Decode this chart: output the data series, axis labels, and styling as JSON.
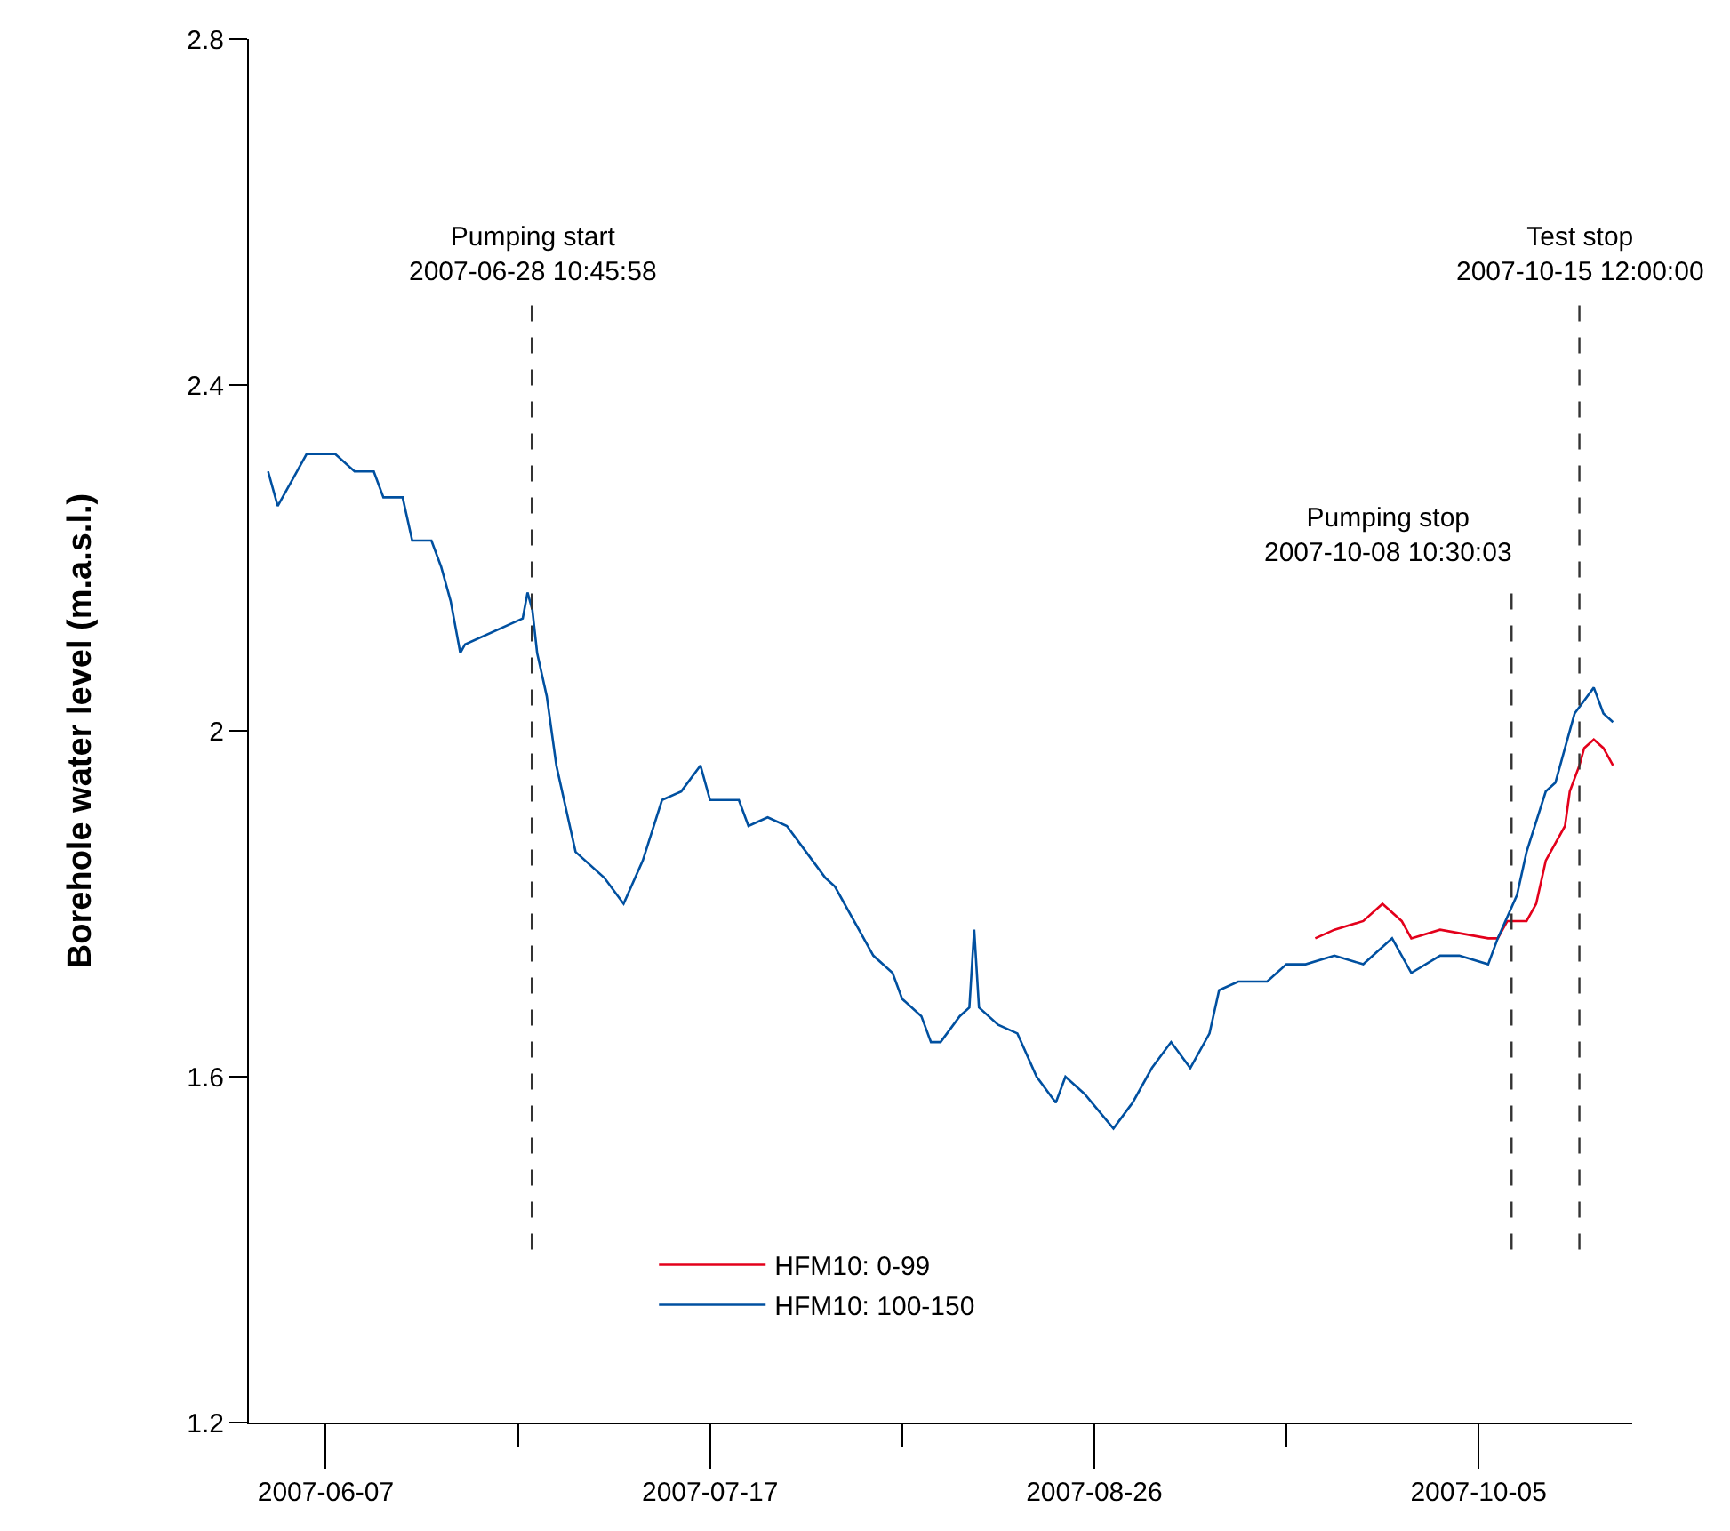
{
  "chart_data": {
    "type": "line",
    "ylabel": "Borehole water level (m.a.s.l.)",
    "xlim": [
      "2007-05-30",
      "2007-10-21"
    ],
    "xticks": [
      {
        "value": "2007-06-07",
        "label": "2007-06-07"
      },
      {
        "value": "2007-06-27",
        "label": null
      },
      {
        "value": "2007-07-17",
        "label": "2007-07-17"
      },
      {
        "value": "2007-08-06",
        "label": null
      },
      {
        "value": "2007-08-26",
        "label": "2007-08-26"
      },
      {
        "value": "2007-09-15",
        "label": null
      },
      {
        "value": "2007-10-05",
        "label": "2007-10-05"
      }
    ],
    "ylim": [
      1.2,
      2.8
    ],
    "yticks": [
      2.8,
      2.4,
      2,
      1.6,
      1.2
    ],
    "legend": "bottom",
    "marker": "none",
    "line_style": "solid",
    "series": [
      {
        "name": "HFM10: 0-99",
        "color": "#e3001b",
        "x": [
          "2007-09-18",
          "2007-09-20",
          "2007-09-23",
          "2007-09-25",
          "2007-09-27",
          "2007-09-28",
          "2007-10-01",
          "2007-10-06",
          "2007-10-07",
          "2007-10-08",
          "2007-10-10",
          "2007-10-11",
          "2007-10-12",
          "2007-10-14",
          "2007-10-14T12:00",
          "2007-10-15T12:00",
          "2007-10-16",
          "2007-10-17",
          "2007-10-18",
          "2007-10-19"
        ],
        "values": [
          1.76,
          1.77,
          1.78,
          1.8,
          1.78,
          1.76,
          1.77,
          1.76,
          1.76,
          1.78,
          1.78,
          1.8,
          1.85,
          1.89,
          1.93,
          1.96,
          1.98,
          1.99,
          1.98,
          1.96
        ]
      },
      {
        "name": "HFM10: 100-150",
        "color": "#0050a0",
        "x": [
          "2007-06-01",
          "2007-06-02",
          "2007-06-04",
          "2007-06-05",
          "2007-06-08",
          "2007-06-10",
          "2007-06-12",
          "2007-06-13",
          "2007-06-15",
          "2007-06-16",
          "2007-06-18",
          "2007-06-19",
          "2007-06-20",
          "2007-06-21",
          "2007-06-21T12:00",
          "2007-06-27T12:00",
          "2007-06-28",
          "2007-06-28T12:00",
          "2007-06-29",
          "2007-06-30",
          "2007-07-01",
          "2007-07-02",
          "2007-07-03",
          "2007-07-06",
          "2007-07-08",
          "2007-07-10",
          "2007-07-12",
          "2007-07-14",
          "2007-07-16",
          "2007-07-17",
          "2007-07-20",
          "2007-07-21",
          "2007-07-23",
          "2007-07-25",
          "2007-07-27",
          "2007-07-29",
          "2007-07-30",
          "2007-07-31",
          "2007-08-02",
          "2007-08-03",
          "2007-08-05",
          "2007-08-06",
          "2007-08-08",
          "2007-08-09",
          "2007-08-10",
          "2007-08-12",
          "2007-08-13",
          "2007-08-13T12:00",
          "2007-08-14",
          "2007-08-16",
          "2007-08-18",
          "2007-08-20",
          "2007-08-22",
          "2007-08-23",
          "2007-08-25",
          "2007-08-28",
          "2007-08-30",
          "2007-09-01",
          "2007-09-03",
          "2007-09-05",
          "2007-09-07",
          "2007-09-08",
          "2007-09-10",
          "2007-09-13",
          "2007-09-15",
          "2007-09-17",
          "2007-09-20",
          "2007-09-23",
          "2007-09-26",
          "2007-09-28",
          "2007-10-01",
          "2007-10-03",
          "2007-10-06",
          "2007-10-07",
          "2007-10-09",
          "2007-10-10",
          "2007-10-12",
          "2007-10-13",
          "2007-10-14",
          "2007-10-15",
          "2007-10-17",
          "2007-10-18",
          "2007-10-19"
        ],
        "values": [
          2.3,
          2.26,
          2.3,
          2.32,
          2.32,
          2.3,
          2.3,
          2.27,
          2.27,
          2.22,
          2.22,
          2.19,
          2.15,
          2.09,
          2.1,
          2.13,
          2.16,
          2.14,
          2.09,
          2.04,
          1.96,
          1.91,
          1.86,
          1.83,
          1.8,
          1.85,
          1.92,
          1.93,
          1.96,
          1.92,
          1.92,
          1.89,
          1.9,
          1.89,
          1.86,
          1.83,
          1.82,
          1.8,
          1.76,
          1.74,
          1.72,
          1.69,
          1.67,
          1.64,
          1.64,
          1.67,
          1.68,
          1.77,
          1.68,
          1.66,
          1.65,
          1.6,
          1.57,
          1.6,
          1.58,
          1.54,
          1.57,
          1.61,
          1.64,
          1.61,
          1.65,
          1.7,
          1.71,
          1.71,
          1.73,
          1.73,
          1.74,
          1.73,
          1.76,
          1.72,
          1.74,
          1.74,
          1.73,
          1.76,
          1.81,
          1.86,
          1.93,
          1.94,
          1.98,
          2.02,
          2.05,
          2.02,
          2.01
        ]
      }
    ],
    "ref_lines": [
      {
        "axis": "x",
        "value": "2007-06-28T10:45:58",
        "label": "Pumping start\n2007-06-28 10:45:58",
        "color": "#333333",
        "line_style": "dashed"
      },
      {
        "axis": "x",
        "value": "2007-10-08T10:30:03",
        "label": "Pumping stop\n2007-10-08 10:30:03",
        "color": "#333333",
        "line_style": "dashed"
      },
      {
        "axis": "x",
        "value": "2007-10-15T12:00:00",
        "label": "Test stop\n2007-10-15 12:00:00",
        "color": "#333333",
        "line_style": "dashed"
      }
    ]
  }
}
